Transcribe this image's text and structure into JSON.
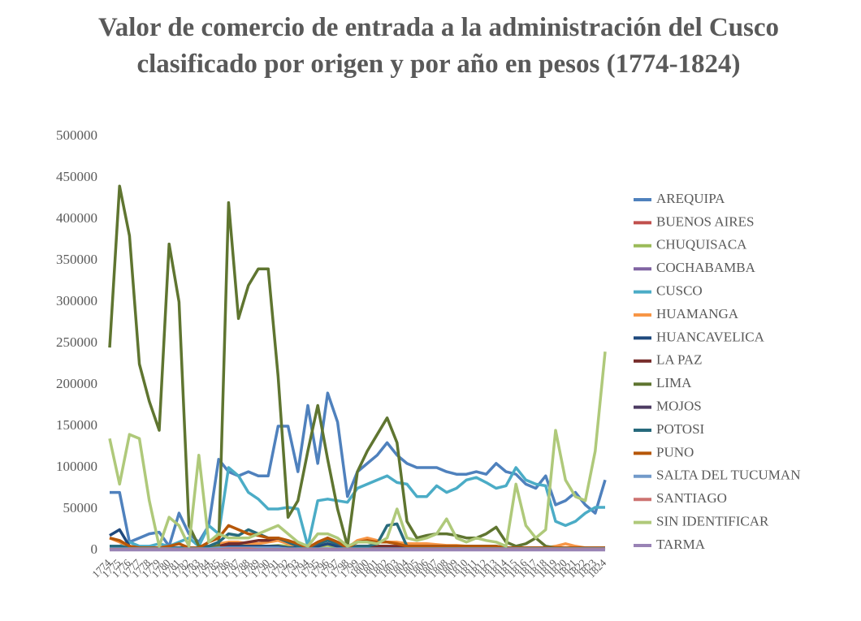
{
  "chart_data": {
    "type": "line",
    "title": "Valor de comercio de entrada a la administración del Cusco clasificado por origen y por año en pesos (1774-1824)",
    "categories": [
      "1774",
      "1775",
      "1776",
      "1777",
      "1778",
      "1779",
      "1780",
      "1781",
      "1782",
      "1783",
      "1784",
      "1785",
      "1786",
      "1787",
      "1788",
      "1789",
      "1790",
      "1791",
      "1792",
      "1793",
      "1794",
      "1795",
      "1796",
      "1797",
      "1798",
      "1799",
      "1800",
      "1801",
      "1802",
      "1803",
      "1804",
      "1805",
      "1806",
      "1807",
      "1808",
      "1809",
      "1810",
      "1811",
      "1812",
      "1813",
      "1814",
      "1815",
      "1816",
      "1817",
      "1818",
      "1819",
      "1820",
      "1821",
      "1822",
      "1823",
      "1824"
    ],
    "ylim": [
      0,
      500000
    ],
    "yticks": [
      0,
      50000,
      100000,
      150000,
      200000,
      250000,
      300000,
      350000,
      400000,
      450000,
      500000
    ],
    "grid": false,
    "legend": "right",
    "series": [
      {
        "name": "AREQUIPA",
        "color": "#4f81bd",
        "values": [
          70000,
          70000,
          10000,
          15000,
          20000,
          22000,
          5000,
          45000,
          20000,
          10000,
          30000,
          110000,
          95000,
          90000,
          95000,
          90000,
          90000,
          150000,
          150000,
          95000,
          175000,
          105000,
          190000,
          155000,
          65000,
          95000,
          105000,
          115000,
          130000,
          115000,
          105000,
          100000,
          100000,
          100000,
          95000,
          92000,
          92000,
          95000,
          92000,
          105000,
          95000,
          92000,
          80000,
          75000,
          90000,
          55000,
          60000,
          70000,
          55000,
          45000,
          85000
        ]
      },
      {
        "name": "BUENOS AIRES",
        "color": "#c0504d",
        "values": [
          3000,
          2000,
          1000,
          1000,
          1000,
          2000,
          1000,
          1000,
          1000,
          1000,
          2000,
          1000,
          3000,
          2000,
          2000,
          2000,
          1000,
          1000,
          1000,
          1000,
          1000,
          2000,
          2000,
          1000,
          1000,
          3000,
          2000,
          2000,
          2000,
          1000,
          1000,
          1000,
          1000,
          1000,
          1000,
          1000,
          1000,
          1000,
          1000,
          1000,
          1000,
          1000,
          1000,
          1000,
          1000,
          1000,
          1000,
          1000,
          1000,
          1000,
          1000
        ]
      },
      {
        "name": "CHUQUISACA",
        "color": "#9bbb59",
        "values": [
          5000,
          4000,
          3000,
          3000,
          2000,
          2000,
          2000,
          3000,
          2000,
          2000,
          3000,
          5000,
          8000,
          6000,
          5000,
          5000,
          5000,
          6000,
          5000,
          3000,
          2000,
          5000,
          6000,
          4000,
          2000,
          4000,
          5000,
          5000,
          5000,
          4000,
          3000,
          3000,
          3000,
          3000,
          3000,
          3000,
          3000,
          3000,
          3000,
          3000,
          2000,
          2000,
          2000,
          2000,
          2000,
          2000,
          2000,
          2000,
          2000,
          2000,
          2000
        ]
      },
      {
        "name": "COCHABAMBA",
        "color": "#8064a2",
        "values": [
          1000,
          1000,
          1000,
          1000,
          1000,
          1000,
          1000,
          1000,
          1000,
          1000,
          1000,
          1000,
          2000,
          2000,
          1000,
          1000,
          1000,
          1000,
          1000,
          1000,
          1000,
          1000,
          1000,
          1000,
          1000,
          1000,
          1000,
          1000,
          1000,
          1000,
          1000,
          1000,
          1000,
          1000,
          1000,
          1000,
          1000,
          1000,
          1000,
          1000,
          1000,
          1000,
          1000,
          1000,
          1000,
          1000,
          1000,
          1000,
          1000,
          1000,
          1000
        ]
      },
      {
        "name": "CUSCO",
        "color": "#4bacc6",
        "values": [
          5000,
          5000,
          10000,
          5000,
          5000,
          8000,
          5000,
          10000,
          15000,
          5000,
          30000,
          20000,
          100000,
          90000,
          70000,
          62000,
          50000,
          50000,
          52000,
          50000,
          5000,
          60000,
          62000,
          60000,
          58000,
          75000,
          80000,
          85000,
          90000,
          82000,
          80000,
          65000,
          65000,
          78000,
          70000,
          75000,
          85000,
          88000,
          82000,
          75000,
          78000,
          100000,
          85000,
          80000,
          78000,
          35000,
          30000,
          35000,
          45000,
          52000,
          52000
        ]
      },
      {
        "name": "HUAMANGA",
        "color": "#f79646",
        "values": [
          15000,
          10000,
          5000,
          3000,
          2000,
          2000,
          2000,
          3000,
          2000,
          2000,
          5000,
          8000,
          10000,
          10000,
          8000,
          8000,
          10000,
          12000,
          8000,
          5000,
          3000,
          5000,
          8000,
          5000,
          3000,
          12000,
          15000,
          12000,
          10000,
          10000,
          8000,
          8000,
          8000,
          7000,
          6000,
          6000,
          5000,
          5000,
          5000,
          4000,
          3000,
          3000,
          3000,
          3000,
          3000,
          5000,
          8000,
          5000,
          3000,
          2000,
          2000
        ]
      },
      {
        "name": "HUANCAVELICA",
        "color": "#1f497d",
        "values": [
          18000,
          25000,
          5000,
          3000,
          2000,
          2000,
          2000,
          3000,
          2000,
          2000,
          3000,
          5000,
          5000,
          5000,
          5000,
          5000,
          5000,
          5000,
          3000,
          3000,
          2000,
          5000,
          8000,
          5000,
          2000,
          3000,
          3000,
          3000,
          3000,
          3000,
          2000,
          2000,
          2000,
          2000,
          2000,
          2000,
          2000,
          2000,
          2000,
          2000,
          2000,
          2000,
          2000,
          2000,
          2000,
          2000,
          2000,
          2000,
          2000,
          2000,
          2000
        ]
      },
      {
        "name": "LA PAZ",
        "color": "#772c2a",
        "values": [
          3000,
          2000,
          2000,
          2000,
          2000,
          2000,
          2000,
          3000,
          2000,
          2000,
          3000,
          5000,
          8000,
          8000,
          10000,
          12000,
          12000,
          15000,
          10000,
          5000,
          3000,
          8000,
          15000,
          8000,
          3000,
          5000,
          5000,
          5000,
          5000,
          5000,
          3000,
          3000,
          3000,
          3000,
          3000,
          3000,
          3000,
          3000,
          3000,
          3000,
          2000,
          2000,
          2000,
          2000,
          2000,
          2000,
          2000,
          2000,
          2000,
          2000,
          2000
        ]
      },
      {
        "name": "LIMA",
        "color": "#5f7530",
        "values": [
          245000,
          440000,
          380000,
          225000,
          180000,
          145000,
          370000,
          300000,
          30000,
          5000,
          5000,
          5000,
          420000,
          280000,
          320000,
          340000,
          340000,
          210000,
          40000,
          60000,
          120000,
          175000,
          110000,
          50000,
          5000,
          95000,
          120000,
          140000,
          160000,
          130000,
          35000,
          15000,
          18000,
          20000,
          20000,
          18000,
          15000,
          15000,
          20000,
          28000,
          10000,
          5000,
          8000,
          15000,
          5000,
          3000,
          3000,
          2000,
          2000,
          2000,
          3000
        ]
      },
      {
        "name": "MOJOS",
        "color": "#4d3b62",
        "values": [
          1000,
          1000,
          1000,
          1000,
          1000,
          1000,
          1000,
          1000,
          1000,
          1000,
          1000,
          1000,
          1000,
          1000,
          1000,
          1000,
          1000,
          1000,
          1000,
          1000,
          1000,
          1000,
          1000,
          1000,
          1000,
          1000,
          1000,
          1000,
          1000,
          1000,
          1000,
          1000,
          1000,
          1000,
          1000,
          1000,
          1000,
          1000,
          1000,
          1000,
          1000,
          1000,
          1000,
          1000,
          1000,
          1000,
          1000,
          1000,
          1000,
          1000,
          1000
        ]
      },
      {
        "name": "POTOSI",
        "color": "#276a7c",
        "values": [
          5000,
          5000,
          3000,
          3000,
          3000,
          3000,
          3000,
          3000,
          3000,
          3000,
          5000,
          10000,
          20000,
          18000,
          25000,
          20000,
          15000,
          15000,
          10000,
          5000,
          3000,
          8000,
          12000,
          8000,
          3000,
          5000,
          5000,
          8000,
          30000,
          32000,
          5000,
          5000,
          5000,
          5000,
          5000,
          5000,
          5000,
          5000,
          5000,
          5000,
          3000,
          3000,
          3000,
          3000,
          3000,
          3000,
          3000,
          3000,
          3000,
          3000,
          3000
        ]
      },
      {
        "name": "PUNO",
        "color": "#b65708",
        "values": [
          15000,
          12000,
          5000,
          3000,
          3000,
          3000,
          5000,
          8000,
          3000,
          3000,
          10000,
          15000,
          30000,
          25000,
          20000,
          18000,
          15000,
          15000,
          12000,
          8000,
          3000,
          10000,
          15000,
          10000,
          3000,
          10000,
          12000,
          10000,
          10000,
          8000,
          5000,
          5000,
          5000,
          5000,
          5000,
          5000,
          5000,
          5000,
          5000,
          5000,
          3000,
          3000,
          3000,
          3000,
          3000,
          3000,
          3000,
          3000,
          3000,
          3000,
          3000
        ]
      },
      {
        "name": "SALTA DEL TUCUMAN",
        "color": "#729aca",
        "values": [
          2000,
          2000,
          2000,
          2000,
          2000,
          2000,
          2000,
          2000,
          2000,
          2000,
          2000,
          3000,
          3000,
          3000,
          3000,
          3000,
          3000,
          3000,
          2000,
          2000,
          2000,
          2000,
          2000,
          2000,
          2000,
          2000,
          2000,
          2000,
          2000,
          2000,
          2000,
          2000,
          2000,
          2000,
          2000,
          2000,
          2000,
          2000,
          2000,
          2000,
          2000,
          2000,
          2000,
          2000,
          2000,
          2000,
          2000,
          2000,
          2000,
          2000,
          2000
        ]
      },
      {
        "name": "SANTIAGO",
        "color": "#cd7371",
        "values": [
          1000,
          1000,
          1000,
          1000,
          1000,
          1000,
          1000,
          1000,
          1000,
          1000,
          1000,
          1000,
          2000,
          2000,
          2000,
          1000,
          1000,
          1000,
          1000,
          1000,
          1000,
          1000,
          1000,
          1000,
          1000,
          1000,
          1000,
          1000,
          1000,
          1000,
          1000,
          1000,
          1000,
          1000,
          1000,
          1000,
          1000,
          1000,
          1000,
          1000,
          1000,
          1000,
          1000,
          1000,
          1000,
          1000,
          1000,
          1000,
          1000,
          1000,
          1000
        ]
      },
      {
        "name": "SIN IDENTIFICAR",
        "color": "#afc97a",
        "values": [
          135000,
          80000,
          140000,
          135000,
          60000,
          5000,
          40000,
          30000,
          5000,
          115000,
          10000,
          20000,
          15000,
          15000,
          15000,
          20000,
          25000,
          30000,
          20000,
          10000,
          5000,
          20000,
          20000,
          15000,
          5000,
          10000,
          10000,
          8000,
          15000,
          50000,
          15000,
          12000,
          15000,
          20000,
          38000,
          15000,
          10000,
          15000,
          12000,
          10000,
          5000,
          80000,
          30000,
          15000,
          25000,
          145000,
          85000,
          65000,
          60000,
          120000,
          240000
        ]
      },
      {
        "name": "TARMA",
        "color": "#9983b5",
        "values": [
          500,
          500,
          500,
          500,
          500,
          500,
          500,
          500,
          500,
          500,
          500,
          500,
          500,
          500,
          500,
          500,
          500,
          500,
          500,
          500,
          500,
          500,
          500,
          500,
          500,
          500,
          500,
          500,
          500,
          500,
          500,
          500,
          500,
          500,
          500,
          500,
          500,
          500,
          500,
          500,
          500,
          500,
          500,
          500,
          500,
          500,
          500,
          500,
          500,
          500,
          500
        ]
      }
    ]
  }
}
